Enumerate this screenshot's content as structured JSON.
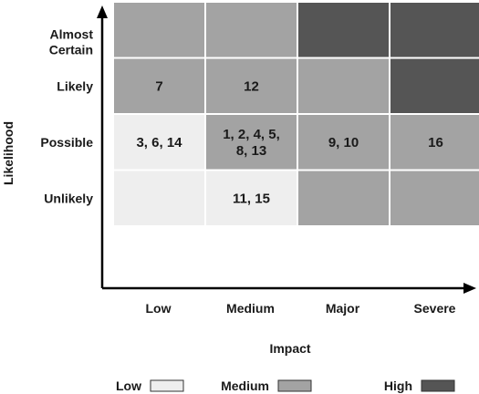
{
  "chart_data": {
    "type": "heatmap",
    "title": "",
    "xlabel": "Impact",
    "ylabel": "Likelihood",
    "x_categories": [
      "Low",
      "Medium",
      "Major",
      "Severe"
    ],
    "y_categories": [
      "Unlikely",
      "Possible",
      "Likely",
      "Almost Certain"
    ],
    "cells": [
      [
        "Low",
        "Low",
        "Medium",
        "Medium"
      ],
      [
        "Low",
        "Medium",
        "Medium",
        "Medium"
      ],
      [
        "Medium",
        "Medium",
        "Medium",
        "High"
      ],
      [
        "Medium",
        "Medium",
        "High",
        "High"
      ]
    ],
    "cell_labels": [
      [
        "",
        "11, 15",
        "",
        ""
      ],
      [
        "3,  6, 14",
        "1, 2, 4,  5,\n8, 13",
        "9, 10",
        "16"
      ],
      [
        "7",
        "12",
        "",
        ""
      ],
      [
        "",
        "",
        "",
        ""
      ]
    ],
    "legend": {
      "position": "bottom",
      "items": [
        {
          "label": "Low",
          "color": "#eeeeee"
        },
        {
          "label": "Medium",
          "color": "#a3a3a3"
        },
        {
          "label": "High",
          "color": "#555555"
        }
      ]
    },
    "colors": {
      "Low": "#eeeeee",
      "Medium": "#a3a3a3",
      "High": "#555555"
    }
  }
}
